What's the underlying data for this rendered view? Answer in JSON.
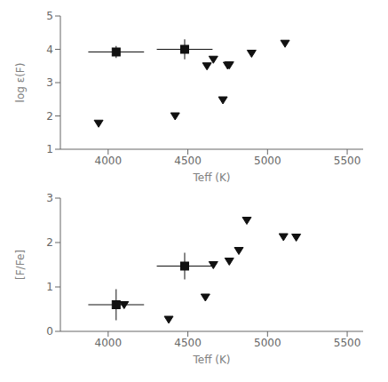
{
  "chart_data": [
    {
      "type": "scatter",
      "xlabel": "Teff (K)",
      "ylabel": "log ε(F)",
      "xlim": [
        3700,
        5600
      ],
      "ylim": [
        1,
        5
      ],
      "xticks": [
        4000,
        4500,
        5000,
        5500
      ],
      "yticks": [
        1,
        2,
        3,
        4,
        5
      ],
      "grid": false,
      "series": [
        {
          "marker": "square",
          "color": "#111111",
          "x": [
            4050,
            4480
          ],
          "y": [
            3.92,
            4.0
          ],
          "xerr": [
            175,
            175
          ],
          "yerr": [
            0.18,
            0.3
          ]
        },
        {
          "marker": "triangle-down",
          "color": "#111111",
          "x": [
            3940,
            4420,
            4620,
            4660,
            4720,
            4750,
            4760,
            4900,
            5110
          ],
          "y": [
            1.78,
            2.0,
            3.5,
            3.7,
            2.48,
            3.52,
            3.53,
            3.88,
            4.18
          ]
        }
      ]
    },
    {
      "type": "scatter",
      "xlabel": "Teff (K)",
      "ylabel": "[F/Fe]",
      "xlim": [
        3700,
        5600
      ],
      "ylim": [
        0,
        3
      ],
      "xticks": [
        4000,
        4500,
        5000,
        5500
      ],
      "yticks": [
        0,
        1,
        2,
        3
      ],
      "grid": false,
      "series": [
        {
          "marker": "square",
          "color": "#111111",
          "x": [
            4050,
            4480
          ],
          "y": [
            0.6,
            1.47
          ],
          "xerr": [
            175,
            175
          ],
          "yerr": [
            0.35,
            0.3
          ]
        },
        {
          "marker": "triangle-down",
          "color": "#111111",
          "x": [
            4100,
            4380,
            4610,
            4660,
            4760,
            4820,
            4870,
            5100,
            5180
          ],
          "y": [
            0.6,
            0.27,
            0.77,
            1.5,
            1.58,
            1.82,
            2.5,
            2.13,
            2.12
          ]
        }
      ]
    }
  ]
}
